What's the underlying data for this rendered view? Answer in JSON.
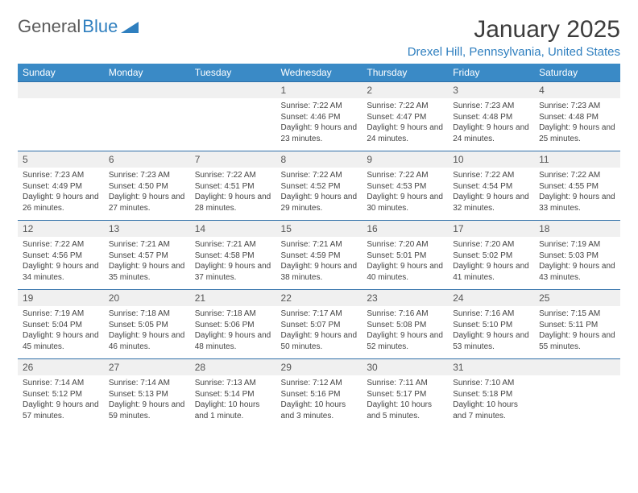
{
  "brand": {
    "general": "General",
    "blue": "Blue"
  },
  "title": "January 2025",
  "location": "Drexel Hill, Pennsylvania, United States",
  "theme": {
    "header_bg": "#3a8ac6",
    "header_text": "#ffffff",
    "accent": "#2f7fbf",
    "daynum_bg": "#f0f0f0",
    "text": "#3a3a3a",
    "row_border": "#2f6fa8"
  },
  "day_headers": [
    "Sunday",
    "Monday",
    "Tuesday",
    "Wednesday",
    "Thursday",
    "Friday",
    "Saturday"
  ],
  "weeks": [
    [
      null,
      null,
      null,
      {
        "n": "1",
        "sr": "7:22 AM",
        "ss": "4:46 PM",
        "dl": "9 hours and 23 minutes."
      },
      {
        "n": "2",
        "sr": "7:22 AM",
        "ss": "4:47 PM",
        "dl": "9 hours and 24 minutes."
      },
      {
        "n": "3",
        "sr": "7:23 AM",
        "ss": "4:48 PM",
        "dl": "9 hours and 24 minutes."
      },
      {
        "n": "4",
        "sr": "7:23 AM",
        "ss": "4:48 PM",
        "dl": "9 hours and 25 minutes."
      }
    ],
    [
      {
        "n": "5",
        "sr": "7:23 AM",
        "ss": "4:49 PM",
        "dl": "9 hours and 26 minutes."
      },
      {
        "n": "6",
        "sr": "7:23 AM",
        "ss": "4:50 PM",
        "dl": "9 hours and 27 minutes."
      },
      {
        "n": "7",
        "sr": "7:22 AM",
        "ss": "4:51 PM",
        "dl": "9 hours and 28 minutes."
      },
      {
        "n": "8",
        "sr": "7:22 AM",
        "ss": "4:52 PM",
        "dl": "9 hours and 29 minutes."
      },
      {
        "n": "9",
        "sr": "7:22 AM",
        "ss": "4:53 PM",
        "dl": "9 hours and 30 minutes."
      },
      {
        "n": "10",
        "sr": "7:22 AM",
        "ss": "4:54 PM",
        "dl": "9 hours and 32 minutes."
      },
      {
        "n": "11",
        "sr": "7:22 AM",
        "ss": "4:55 PM",
        "dl": "9 hours and 33 minutes."
      }
    ],
    [
      {
        "n": "12",
        "sr": "7:22 AM",
        "ss": "4:56 PM",
        "dl": "9 hours and 34 minutes."
      },
      {
        "n": "13",
        "sr": "7:21 AM",
        "ss": "4:57 PM",
        "dl": "9 hours and 35 minutes."
      },
      {
        "n": "14",
        "sr": "7:21 AM",
        "ss": "4:58 PM",
        "dl": "9 hours and 37 minutes."
      },
      {
        "n": "15",
        "sr": "7:21 AM",
        "ss": "4:59 PM",
        "dl": "9 hours and 38 minutes."
      },
      {
        "n": "16",
        "sr": "7:20 AM",
        "ss": "5:01 PM",
        "dl": "9 hours and 40 minutes."
      },
      {
        "n": "17",
        "sr": "7:20 AM",
        "ss": "5:02 PM",
        "dl": "9 hours and 41 minutes."
      },
      {
        "n": "18",
        "sr": "7:19 AM",
        "ss": "5:03 PM",
        "dl": "9 hours and 43 minutes."
      }
    ],
    [
      {
        "n": "19",
        "sr": "7:19 AM",
        "ss": "5:04 PM",
        "dl": "9 hours and 45 minutes."
      },
      {
        "n": "20",
        "sr": "7:18 AM",
        "ss": "5:05 PM",
        "dl": "9 hours and 46 minutes."
      },
      {
        "n": "21",
        "sr": "7:18 AM",
        "ss": "5:06 PM",
        "dl": "9 hours and 48 minutes."
      },
      {
        "n": "22",
        "sr": "7:17 AM",
        "ss": "5:07 PM",
        "dl": "9 hours and 50 minutes."
      },
      {
        "n": "23",
        "sr": "7:16 AM",
        "ss": "5:08 PM",
        "dl": "9 hours and 52 minutes."
      },
      {
        "n": "24",
        "sr": "7:16 AM",
        "ss": "5:10 PM",
        "dl": "9 hours and 53 minutes."
      },
      {
        "n": "25",
        "sr": "7:15 AM",
        "ss": "5:11 PM",
        "dl": "9 hours and 55 minutes."
      }
    ],
    [
      {
        "n": "26",
        "sr": "7:14 AM",
        "ss": "5:12 PM",
        "dl": "9 hours and 57 minutes."
      },
      {
        "n": "27",
        "sr": "7:14 AM",
        "ss": "5:13 PM",
        "dl": "9 hours and 59 minutes."
      },
      {
        "n": "28",
        "sr": "7:13 AM",
        "ss": "5:14 PM",
        "dl": "10 hours and 1 minute."
      },
      {
        "n": "29",
        "sr": "7:12 AM",
        "ss": "5:16 PM",
        "dl": "10 hours and 3 minutes."
      },
      {
        "n": "30",
        "sr": "7:11 AM",
        "ss": "5:17 PM",
        "dl": "10 hours and 5 minutes."
      },
      {
        "n": "31",
        "sr": "7:10 AM",
        "ss": "5:18 PM",
        "dl": "10 hours and 7 minutes."
      },
      null
    ]
  ],
  "labels": {
    "sunrise": "Sunrise: ",
    "sunset": "Sunset: ",
    "daylight": "Daylight: "
  }
}
